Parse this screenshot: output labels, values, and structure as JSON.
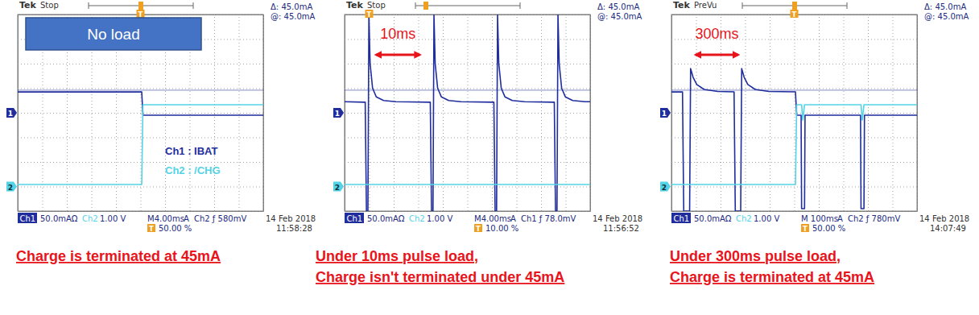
{
  "chart_data": [
    {
      "type": "line",
      "title": "Charge is terminated at 45mA",
      "readouts": {
        "brand": "Tek",
        "state": "Stop",
        "delta": "Δ: 45.0mA",
        "at": "@: 45.0mA",
        "ch1_scale": "50.0mAΩ",
        "ch2_scale": "1.00 V",
        "timebase": "M4.00ms",
        "mode": "A",
        "trigger": "Ch2 ƒ 580mV",
        "date": "14 Feb 2018",
        "time": "11:58:28",
        "trigger_marker": "T"
      },
      "trigger_position": {
        "value": 50,
        "label": "50.00 %"
      },
      "cursor_level": 0.92,
      "annotations": [
        {
          "text": "No load"
        },
        {
          "text": "Ch1 : IBAT"
        },
        {
          "text": "Ch2 : /CHG"
        }
      ],
      "series": [
        {
          "name": "Ch1",
          "color": "#1f2d9d",
          "reference": {
            "value": 0,
            "label": "1"
          },
          "x": [
            0,
            5.05,
            5.1,
            10
          ],
          "values": [
            0.85,
            0.85,
            -0.1,
            -0.1
          ]
        },
        {
          "name": "Ch2",
          "color": "#55d3e6",
          "reference": {
            "value": -3,
            "label": "2"
          },
          "x": [
            0,
            5.05,
            5.1,
            10
          ],
          "values": [
            -2.92,
            -2.92,
            0.33,
            0.33
          ]
        }
      ],
      "xlim": [
        0,
        10
      ],
      "ylim": [
        -4,
        4
      ],
      "xticks": [
        0,
        1,
        2,
        3,
        4,
        5,
        6,
        7,
        8,
        9,
        10
      ],
      "yticks": [
        -4,
        -3,
        -2,
        -1,
        0,
        1,
        2,
        3,
        4
      ],
      "grid": true,
      "tick_labels": false
    },
    {
      "type": "line",
      "title": "Under 10ms pulse load,",
      "subtitle": "Charge isn't terminated under 45mA",
      "readouts": {
        "brand": "Tek",
        "state": "Stop",
        "delta": "Δ: 45.0mA",
        "at": "@: 45.0mA",
        "ch1_scale": "50.0mAΩ",
        "ch2_scale": "1.00 V",
        "timebase": "M4.00ms",
        "mode": "A",
        "trigger": "Ch1 ƒ 78.0mV",
        "date": "14 Feb 2018",
        "time": "11:56:52",
        "trigger_marker": "T"
      },
      "trigger_position": {
        "value": 10,
        "label": "10.00 %"
      },
      "cursor_level": 0.92,
      "annotations": [
        {
          "text": "10ms",
          "x": [
            1.1,
            3.25
          ]
        }
      ],
      "series": [
        {
          "name": "Ch1",
          "color": "#1f2d9d",
          "reference": {
            "value": 0,
            "label": "1"
          },
          "x": [
            0,
            0.84,
            0.89,
            0.95,
            0.99,
            1.04,
            1.14,
            1.29,
            1.59,
            2.09,
            3.49,
            3.54,
            3.6,
            3.64,
            3.69,
            3.79,
            3.94,
            4.24,
            4.74,
            6.08,
            6.13,
            6.19,
            6.23,
            6.28,
            6.38,
            6.53,
            6.83,
            7.33,
            8.54,
            8.59,
            8.65,
            8.69,
            8.74,
            8.84,
            8.99,
            9.29,
            9.79,
            10
          ],
          "values": [
            0.45,
            0.43,
            -4,
            -4,
            4,
            2,
            1,
            0.65,
            0.5,
            0.45,
            0.43,
            -4,
            -4,
            4,
            2,
            1,
            0.65,
            0.5,
            0.45,
            0.43,
            -4,
            -4,
            4,
            2,
            1,
            0.65,
            0.5,
            0.45,
            0.43,
            -4,
            -4,
            4,
            2,
            1,
            0.65,
            0.5,
            0.45,
            0.45
          ]
        },
        {
          "name": "Ch2",
          "color": "#55d3e6",
          "reference": {
            "value": -3,
            "label": "2"
          },
          "x": [
            0,
            10
          ],
          "values": [
            -2.92,
            -2.92
          ]
        }
      ],
      "xlim": [
        0,
        10
      ],
      "ylim": [
        -4,
        4
      ],
      "xticks": [
        0,
        1,
        2,
        3,
        4,
        5,
        6,
        7,
        8,
        9,
        10
      ],
      "yticks": [
        -4,
        -3,
        -2,
        -1,
        0,
        1,
        2,
        3,
        4
      ],
      "grid": true,
      "tick_labels": false
    },
    {
      "type": "line",
      "title": "Under 300ms pulse load,",
      "subtitle": "Charge is terminated at 45mA",
      "readouts": {
        "brand": "Tek",
        "state": "PreVu",
        "delta": "Δ: 45.0mA",
        "at": "@: 45.0mA",
        "ch1_scale": "50.0mAΩ",
        "ch2_scale": "1.00 V",
        "timebase": "M 100ms",
        "mode": "A",
        "trigger": "Ch2 ƒ 780mV",
        "date": "14 Feb 2018",
        "time": "14:07:49",
        "trigger_marker": "T"
      },
      "trigger_position": {
        "value": 50,
        "label": "50.00 %"
      },
      "cursor_level": 0.92,
      "annotations": [
        {
          "text": "300ms",
          "x": [
            0.8,
            2.9
          ]
        }
      ],
      "series": [
        {
          "name": "Ch1",
          "color": "#1f2d9d",
          "reference": {
            "value": 0,
            "label": "1"
          },
          "x": [
            0,
            0.45,
            0.5,
            0.74,
            0.78,
            0.88,
            1.03,
            1.33,
            1.88,
            2.55,
            2.6,
            2.82,
            2.86,
            2.96,
            3.11,
            3.41,
            3.96,
            5.05,
            5.1,
            5.28,
            5.3,
            5.42,
            5.44,
            7.7,
            7.72,
            7.84,
            7.86,
            10
          ],
          "values": [
            0.85,
            0.85,
            -4,
            -4,
            1.8,
            1.45,
            1.15,
            0.95,
            0.87,
            0.85,
            -4,
            -4,
            1.8,
            1.45,
            1.15,
            0.95,
            0.87,
            0.85,
            -0.1,
            -0.1,
            -3.9,
            -3.9,
            -0.1,
            -0.1,
            -3.9,
            -3.9,
            -0.1,
            -0.1
          ]
        },
        {
          "name": "Ch2",
          "color": "#55d3e6",
          "reference": {
            "value": -3,
            "label": "2"
          },
          "x": [
            0,
            5.05,
            5.1,
            5.3,
            5.35,
            5.42,
            7.72,
            7.77,
            7.84,
            10
          ],
          "values": [
            -2.92,
            -2.92,
            0.33,
            0.33,
            -0.3,
            0.33,
            0.33,
            -0.3,
            0.33,
            0.33
          ]
        }
      ],
      "xlim": [
        0,
        10
      ],
      "ylim": [
        -4,
        4
      ],
      "xticks": [
        0,
        1,
        2,
        3,
        4,
        5,
        6,
        7,
        8,
        9,
        10
      ],
      "yticks": [
        -4,
        -3,
        -2,
        -1,
        0,
        1,
        2,
        3,
        4
      ],
      "grid": true,
      "tick_labels": false
    }
  ]
}
